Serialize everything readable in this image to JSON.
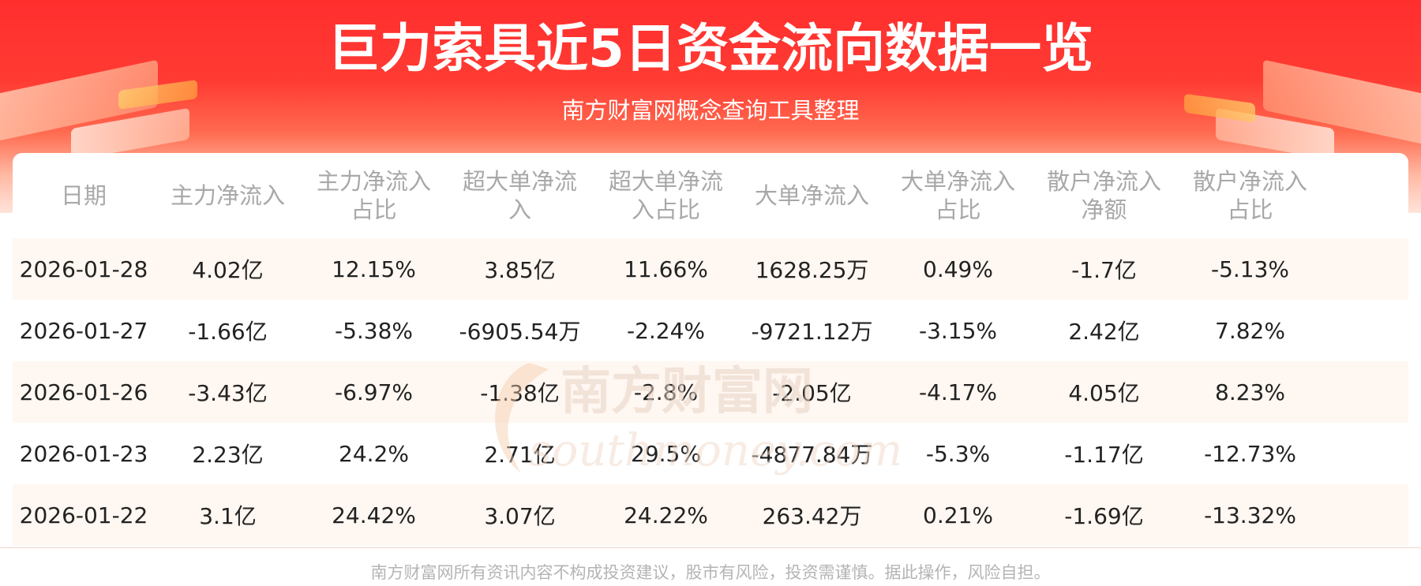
{
  "header": {
    "title": "巨力索具近5日资金流向数据一览",
    "subtitle": "南方财富网概念查询工具整理"
  },
  "watermark": {
    "cn_text": "南方财富网",
    "en_text": "southmoney.com"
  },
  "table": {
    "columns": [
      [
        "日期"
      ],
      [
        "主力净流入"
      ],
      [
        "主力净流入",
        "占比"
      ],
      [
        "超大单净流",
        "入"
      ],
      [
        "超大单净流",
        "入占比"
      ],
      [
        "大单净流入"
      ],
      [
        "大单净流入",
        "占比"
      ],
      [
        "散户净流入",
        "净额"
      ],
      [
        "散户净流入",
        "占比"
      ]
    ],
    "rows": [
      [
        "2026-01-28",
        "4.02亿",
        "12.15%",
        "3.85亿",
        "11.66%",
        "1628.25万",
        "0.49%",
        "-1.7亿",
        "-5.13%"
      ],
      [
        "2026-01-27",
        "-1.66亿",
        "-5.38%",
        "-6905.54万",
        "-2.24%",
        "-9721.12万",
        "-3.15%",
        "2.42亿",
        "7.82%"
      ],
      [
        "2026-01-26",
        "-3.43亿",
        "-6.97%",
        "-1.38亿",
        "-2.8%",
        "-2.05亿",
        "-4.17%",
        "4.05亿",
        "8.23%"
      ],
      [
        "2026-01-23",
        "2.23亿",
        "24.2%",
        "2.71亿",
        "29.5%",
        "-4877.84万",
        "-5.3%",
        "-1.17亿",
        "-12.73%"
      ],
      [
        "2026-01-22",
        "3.1亿",
        "24.42%",
        "3.07亿",
        "24.22%",
        "263.42万",
        "0.21%",
        "-1.69亿",
        "-13.32%"
      ]
    ]
  },
  "footer": {
    "disclaimer": "南方财富网所有资讯内容不构成投资建议，股市有风险，投资需谨慎。据此操作，风险自担。"
  },
  "colors": {
    "header_red": "#ff2e2e",
    "alt_row": "#fff7f1",
    "header_text": "#a8a8a8",
    "body_text": "#222222"
  }
}
